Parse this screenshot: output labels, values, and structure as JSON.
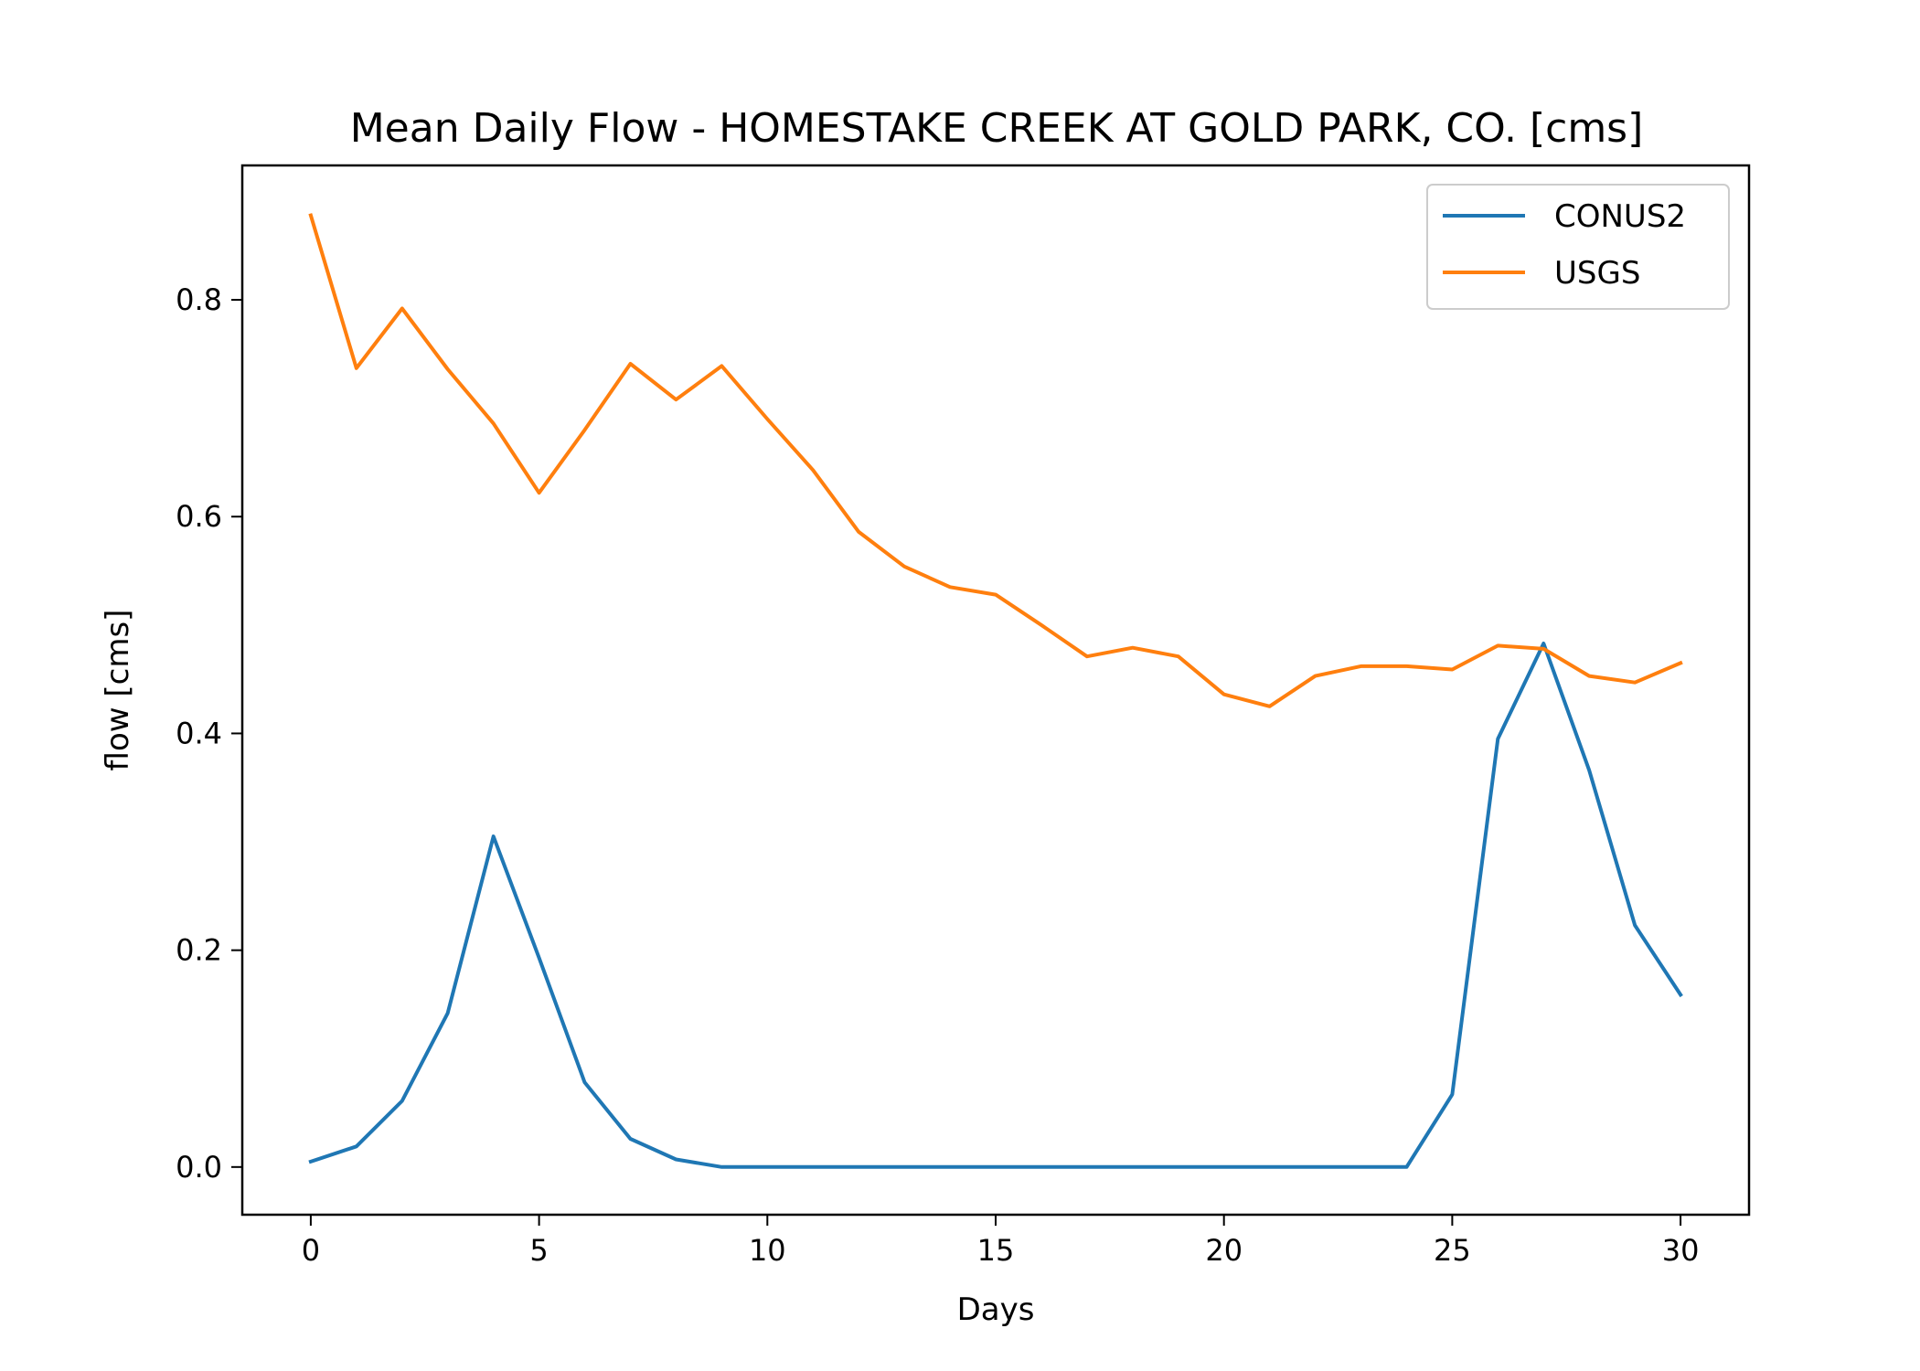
{
  "chart_data": {
    "type": "line",
    "title": "Mean Daily Flow - HOMESTAKE CREEK AT GOLD PARK, CO. [cms]",
    "xlabel": "Days",
    "ylabel": "flow [cms]",
    "xlim": [
      -1.5,
      31.5
    ],
    "ylim": [
      -0.044,
      0.924
    ],
    "xticks": [
      0,
      5,
      10,
      15,
      20,
      25,
      30
    ],
    "yticks": [
      0.0,
      0.2,
      0.4,
      0.6,
      0.8
    ],
    "ytick_labels": [
      "0.0",
      "0.2",
      "0.4",
      "0.6",
      "0.8"
    ],
    "grid": false,
    "legend_position": "top-right",
    "x": [
      0,
      1,
      2,
      3,
      4,
      5,
      6,
      7,
      8,
      9,
      10,
      11,
      12,
      13,
      14,
      15,
      16,
      17,
      18,
      19,
      20,
      21,
      22,
      23,
      24,
      25,
      26,
      27,
      28,
      29,
      30
    ],
    "series": [
      {
        "name": "CONUS2",
        "color": "#1f77b4",
        "values": [
          0.005,
          0.019,
          0.061,
          0.142,
          0.305,
          0.193,
          0.078,
          0.026,
          0.007,
          0.0,
          0.0,
          0.0,
          0.0,
          0.0,
          0.0,
          0.0,
          0.0,
          0.0,
          0.0,
          0.0,
          0.0,
          0.0,
          0.0,
          0.0,
          0.0,
          0.067,
          0.395,
          0.483,
          0.366,
          0.223,
          0.159
        ]
      },
      {
        "name": "USGS",
        "color": "#ff7f0e",
        "values": [
          0.878,
          0.737,
          0.792,
          0.736,
          0.686,
          0.622,
          0.68,
          0.741,
          0.708,
          0.739,
          0.69,
          0.643,
          0.586,
          0.554,
          0.535,
          0.528,
          0.5,
          0.471,
          0.479,
          0.471,
          0.436,
          0.425,
          0.453,
          0.462,
          0.462,
          0.459,
          0.481,
          0.478,
          0.453,
          0.447,
          0.465
        ]
      }
    ]
  }
}
